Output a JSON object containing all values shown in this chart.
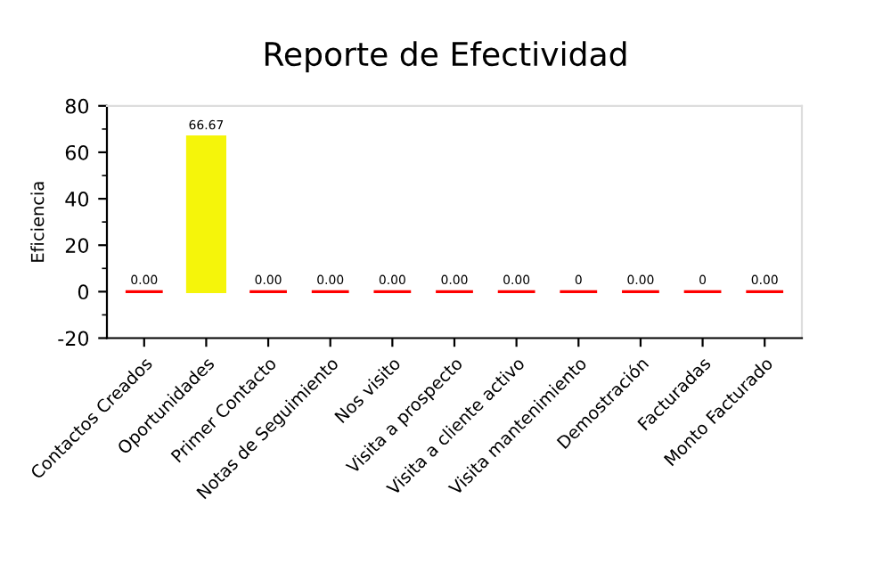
{
  "chart_data": {
    "type": "bar",
    "title": "Reporte de Efectividad",
    "ylabel": "Eficiencia",
    "categories": [
      "Contactos Creados",
      "Oportunidades",
      "Primer Contacto",
      "Notas de Seguimiento",
      "Nos visito",
      "Visita a prospecto",
      "Visita a cliente activo",
      "Visita mantenimiento",
      "Demostración",
      "Facturadas",
      "Monto Facturado"
    ],
    "values": [
      0,
      66.67,
      0,
      0,
      0,
      0,
      0,
      0,
      0,
      0,
      0
    ],
    "value_labels": [
      "0.00",
      "66.67",
      "0.00",
      "0.00",
      "0.00",
      "0.00",
      "0.00",
      "0",
      "0.00",
      "0",
      "0.00"
    ],
    "colors": [
      "#ff0000",
      "#f5f50a",
      "#ff0000",
      "#ff0000",
      "#ff0000",
      "#ff0000",
      "#ff0000",
      "#ff0000",
      "#ff0000",
      "#ff0000",
      "#ff0000"
    ],
    "ylim": [
      -20,
      80
    ],
    "yticks": [
      -20,
      0,
      20,
      40,
      60,
      80
    ],
    "grid": false,
    "legend": false
  }
}
